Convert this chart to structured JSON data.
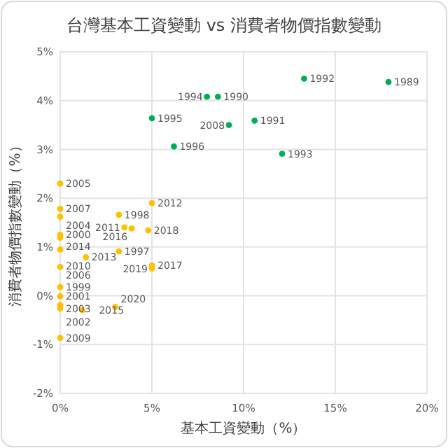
{
  "chart_data": {
    "type": "scatter",
    "title": "台灣基本工資變動 vs 消費者物價指數變動",
    "xlabel": "基本工資變動（%）",
    "ylabel": "消費者物價指數變動（%）",
    "xlim": [
      0,
      20
    ],
    "ylim": [
      -2,
      5
    ],
    "xticks": [
      {
        "value": 0,
        "label": "0%"
      },
      {
        "value": 5,
        "label": "5%"
      },
      {
        "value": 10,
        "label": "10%"
      },
      {
        "value": 15,
        "label": "15%"
      },
      {
        "value": 20,
        "label": "20%"
      }
    ],
    "yticks": [
      {
        "value": -2,
        "label": "-2%"
      },
      {
        "value": -1,
        "label": "-1%"
      },
      {
        "value": 0,
        "label": "0%"
      },
      {
        "value": 1,
        "label": "1%"
      },
      {
        "value": 2,
        "label": "2%"
      },
      {
        "value": 3,
        "label": "3%"
      },
      {
        "value": 4,
        "label": "4%"
      },
      {
        "value": 5,
        "label": "5%"
      }
    ],
    "grid": true,
    "legend": false,
    "marker": "circle",
    "series": [
      {
        "color": "#00b050",
        "x": [
          17.9,
          13.3,
          8.6,
          8.0,
          9.2,
          10.6,
          12.1,
          5.0,
          6.2
        ],
        "values": [
          4.38,
          4.45,
          4.08,
          4.08,
          3.5,
          3.59,
          2.91,
          3.64,
          3.06
        ]
      },
      {
        "color": "#ffc000",
        "x": [
          0,
          0,
          0,
          0,
          0,
          0,
          0,
          0,
          0,
          0,
          0,
          0,
          5.0,
          3.2,
          3.5,
          3.9,
          4.8,
          3.2,
          1.4,
          1.2,
          3.0,
          5.0,
          5.0
        ],
        "values": [
          2.3,
          1.78,
          1.62,
          1.25,
          1.19,
          0.95,
          0.59,
          0.18,
          -0.01,
          -0.19,
          -0.26,
          -0.86,
          1.9,
          1.66,
          1.4,
          1.38,
          1.34,
          0.91,
          0.79,
          -0.29,
          -0.23,
          0.62,
          0.56
        ]
      }
    ],
    "annotations": [
      {
        "text": "1989",
        "x": 17.9,
        "y": 4.38
      },
      {
        "text": "1992",
        "x": 13.3,
        "y": 4.45
      },
      {
        "text": "1990",
        "x": 8.6,
        "y": 4.08
      },
      {
        "text": "1994",
        "x": 8.0,
        "y": 4.08
      },
      {
        "text": "2008",
        "x": 9.2,
        "y": 3.5
      },
      {
        "text": "1991",
        "x": 10.6,
        "y": 3.59
      },
      {
        "text": "1993",
        "x": 12.1,
        "y": 2.91
      },
      {
        "text": "1995",
        "x": 5.0,
        "y": 3.64
      },
      {
        "text": "1996",
        "x": 6.2,
        "y": 3.06
      },
      {
        "text": "2005",
        "x": 0,
        "y": 2.3
      },
      {
        "text": "2007",
        "x": 0,
        "y": 1.78
      },
      {
        "text": "2004",
        "x": 0,
        "y": 1.62
      },
      {
        "text": "2000",
        "x": 0,
        "y": 1.25
      },
      {
        "text": "2014",
        "x": 0,
        "y": 1.19
      },
      {
        "text": "2010",
        "x": 0,
        "y": 0.95
      },
      {
        "text": "2006",
        "x": 0,
        "y": 0.59
      },
      {
        "text": "1999",
        "x": 0,
        "y": 0.18
      },
      {
        "text": "2001",
        "x": 0,
        "y": -0.01
      },
      {
        "text": "2002",
        "x": 0,
        "y": -0.19
      },
      {
        "text": "2003",
        "x": 0,
        "y": -0.26
      },
      {
        "text": "2009",
        "x": 0,
        "y": -0.86
      },
      {
        "text": "2012",
        "x": 5.0,
        "y": 1.9
      },
      {
        "text": "1998",
        "x": 3.2,
        "y": 1.66
      },
      {
        "text": "2011",
        "x": 3.5,
        "y": 1.4
      },
      {
        "text": "2016",
        "x": 3.9,
        "y": 1.38
      },
      {
        "text": "2018",
        "x": 4.8,
        "y": 1.34
      },
      {
        "text": "1997",
        "x": 3.2,
        "y": 0.91
      },
      {
        "text": "2013",
        "x": 1.4,
        "y": 0.79
      },
      {
        "text": "2015",
        "x": 1.2,
        "y": -0.29
      },
      {
        "text": "2020",
        "x": 3.0,
        "y": -0.23
      },
      {
        "text": "2017",
        "x": 5.0,
        "y": 0.62
      },
      {
        "text": "2019",
        "x": 5.0,
        "y": 0.56
      }
    ]
  }
}
